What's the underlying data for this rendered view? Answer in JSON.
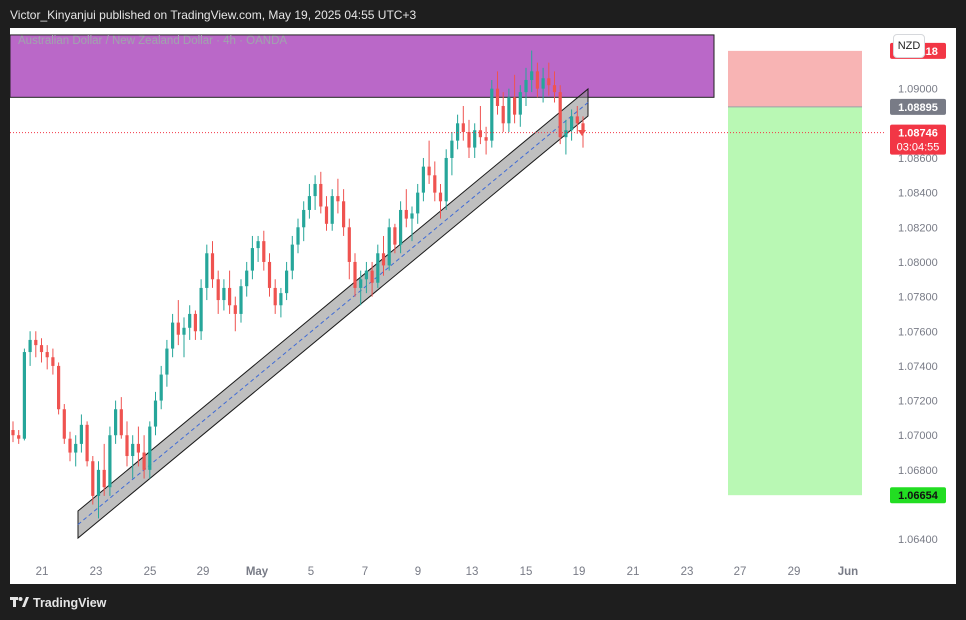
{
  "header": {
    "published_text": "Victor_Kinyanjui published on TradingView.com, May 19, 2025 04:55 UTC+3"
  },
  "chart_header": {
    "symbol": "Australian Dollar / New Zealand Dollar · 4h · OANDA",
    "currency_button": "NZD"
  },
  "price_tags": {
    "target": "1.09218",
    "entry": "1.08895",
    "current": "1.08746",
    "countdown": "03:04:55",
    "stop": "1.06654"
  },
  "footer": {
    "brand": "TradingView"
  },
  "colors": {
    "up": "#26a69a",
    "down": "#ef5350",
    "zone": "#ba68c8",
    "target_zone": "#f8b4b4",
    "stop_zone": "#b9f8b4",
    "channel": "#8a8a8a",
    "current_price": "#f23645",
    "stop_tag": "#22dd22",
    "entry_tag": "#787b86"
  },
  "chart_data": {
    "type": "candlestick",
    "title": "Australian Dollar / New Zealand Dollar · 4h · OANDA",
    "y_ticks": [
      "1.09000",
      "1.08600",
      "1.08400",
      "1.08200",
      "1.08000",
      "1.07800",
      "1.07600",
      "1.07400",
      "1.07200",
      "1.07000",
      "1.06800",
      "1.06400"
    ],
    "x_ticks": [
      "21",
      "23",
      "25",
      "29",
      "May",
      "5",
      "7",
      "9",
      "13",
      "15",
      "19",
      "21",
      "23",
      "27",
      "29",
      "Jun"
    ],
    "ylim": [
      1.0628,
      1.0935
    ],
    "candles": [
      [
        1.0703,
        1.0708,
        1.0696,
        1.07
      ],
      [
        1.07,
        1.0703,
        1.0695,
        1.0698
      ],
      [
        1.0698,
        1.075,
        1.0697,
        1.0748
      ],
      [
        1.0748,
        1.076,
        1.074,
        1.0755
      ],
      [
        1.0755,
        1.076,
        1.0745,
        1.0752
      ],
      [
        1.0752,
        1.0756,
        1.0742,
        1.0748
      ],
      [
        1.0748,
        1.0752,
        1.0738,
        1.0745
      ],
      [
        1.0745,
        1.075,
        1.0735,
        1.074
      ],
      [
        1.074,
        1.0742,
        1.0712,
        1.0715
      ],
      [
        1.0715,
        1.0718,
        1.0695,
        1.0698
      ],
      [
        1.0698,
        1.0702,
        1.0685,
        1.069
      ],
      [
        1.069,
        1.07,
        1.0682,
        1.0695
      ],
      [
        1.0695,
        1.0712,
        1.069,
        1.0706
      ],
      [
        1.0706,
        1.0708,
        1.0682,
        1.0685
      ],
      [
        1.0685,
        1.0688,
        1.066,
        1.0665
      ],
      [
        1.0665,
        1.0685,
        1.0652,
        1.068
      ],
      [
        1.068,
        1.0695,
        1.0665,
        1.067
      ],
      [
        1.067,
        1.0705,
        1.0665,
        1.07
      ],
      [
        1.07,
        1.072,
        1.0695,
        1.0715
      ],
      [
        1.0715,
        1.0722,
        1.0698,
        1.07
      ],
      [
        1.07,
        1.0708,
        1.0682,
        1.0688
      ],
      [
        1.0688,
        1.07,
        1.0675,
        1.0695
      ],
      [
        1.0695,
        1.0705,
        1.0682,
        1.069
      ],
      [
        1.069,
        1.07,
        1.0675,
        1.068
      ],
      [
        1.068,
        1.0708,
        1.0675,
        1.0705
      ],
      [
        1.0705,
        1.0725,
        1.07,
        1.072
      ],
      [
        1.072,
        1.074,
        1.0715,
        1.0735
      ],
      [
        1.0735,
        1.0755,
        1.0728,
        1.075
      ],
      [
        1.075,
        1.077,
        1.0745,
        1.0765
      ],
      [
        1.0765,
        1.0778,
        1.0752,
        1.0758
      ],
      [
        1.0758,
        1.0768,
        1.0745,
        1.0762
      ],
      [
        1.0762,
        1.0775,
        1.0755,
        1.077
      ],
      [
        1.077,
        1.0772,
        1.0755,
        1.076
      ],
      [
        1.076,
        1.079,
        1.0755,
        1.0785
      ],
      [
        1.0785,
        1.081,
        1.0778,
        1.0805
      ],
      [
        1.0805,
        1.0812,
        1.0785,
        1.079
      ],
      [
        1.079,
        1.0795,
        1.077,
        1.0778
      ],
      [
        1.0778,
        1.079,
        1.0772,
        1.0785
      ],
      [
        1.0785,
        1.0795,
        1.077,
        1.0775
      ],
      [
        1.0775,
        1.078,
        1.076,
        1.077
      ],
      [
        1.077,
        1.079,
        1.0765,
        1.0786
      ],
      [
        1.0786,
        1.08,
        1.078,
        1.0795
      ],
      [
        1.0795,
        1.0815,
        1.079,
        1.0808
      ],
      [
        1.0808,
        1.0815,
        1.08,
        1.0812
      ],
      [
        1.0812,
        1.0818,
        1.0795,
        1.08
      ],
      [
        1.08,
        1.0805,
        1.078,
        1.0785
      ],
      [
        1.0785,
        1.079,
        1.077,
        1.0775
      ],
      [
        1.0775,
        1.0785,
        1.0768,
        1.0782
      ],
      [
        1.0782,
        1.08,
        1.0778,
        1.0795
      ],
      [
        1.0795,
        1.0815,
        1.079,
        1.081
      ],
      [
        1.081,
        1.0825,
        1.0805,
        1.082
      ],
      [
        1.082,
        1.0835,
        1.0812,
        1.083
      ],
      [
        1.083,
        1.0845,
        1.0825,
        1.0838
      ],
      [
        1.0838,
        1.085,
        1.083,
        1.0845
      ],
      [
        1.0845,
        1.0852,
        1.0828,
        1.0832
      ],
      [
        1.0832,
        1.0838,
        1.0818,
        1.0822
      ],
      [
        1.0822,
        1.0842,
        1.0818,
        1.0838
      ],
      [
        1.0838,
        1.0848,
        1.0828,
        1.0835
      ],
      [
        1.0835,
        1.0842,
        1.0815,
        1.082
      ],
      [
        1.082,
        1.0825,
        1.079,
        1.08
      ],
      [
        1.08,
        1.0805,
        1.078,
        1.0785
      ],
      [
        1.0785,
        1.0795,
        1.0775,
        1.079
      ],
      [
        1.079,
        1.08,
        1.0782,
        1.0795
      ],
      [
        1.0795,
        1.08,
        1.078,
        1.0788
      ],
      [
        1.0788,
        1.081,
        1.0785,
        1.0805
      ],
      [
        1.0805,
        1.0815,
        1.0792,
        1.0798
      ],
      [
        1.0798,
        1.0825,
        1.0795,
        1.082
      ],
      [
        1.082,
        1.0822,
        1.0805,
        1.081
      ],
      [
        1.081,
        1.0835,
        1.0805,
        1.083
      ],
      [
        1.083,
        1.0842,
        1.082,
        1.0825
      ],
      [
        1.0825,
        1.0832,
        1.0812,
        1.0828
      ],
      [
        1.0828,
        1.0845,
        1.0822,
        1.084
      ],
      [
        1.084,
        1.086,
        1.0835,
        1.0855
      ],
      [
        1.0855,
        1.087,
        1.0845,
        1.085
      ],
      [
        1.085,
        1.0858,
        1.0835,
        1.084
      ],
      [
        1.084,
        1.0845,
        1.0825,
        1.0835
      ],
      [
        1.0835,
        1.0865,
        1.083,
        1.086
      ],
      [
        1.086,
        1.0875,
        1.085,
        1.087
      ],
      [
        1.087,
        1.0885,
        1.0865,
        1.088
      ],
      [
        1.088,
        1.089,
        1.087,
        1.0875
      ],
      [
        1.0875,
        1.0882,
        1.086,
        1.0866
      ],
      [
        1.0866,
        1.088,
        1.086,
        1.0876
      ],
      [
        1.0876,
        1.089,
        1.0868,
        1.0872
      ],
      [
        1.0872,
        1.0878,
        1.0862,
        1.087
      ],
      [
        1.087,
        1.0905,
        1.0866,
        1.09
      ],
      [
        1.09,
        1.091,
        1.0885,
        1.089
      ],
      [
        1.089,
        1.0898,
        1.0875,
        1.088
      ],
      [
        1.088,
        1.09,
        1.0875,
        1.0895
      ],
      [
        1.0895,
        1.0908,
        1.088,
        1.0885
      ],
      [
        1.0885,
        1.0902,
        1.0878,
        1.0898
      ],
      [
        1.0898,
        1.0912,
        1.089,
        1.0905
      ],
      [
        1.0905,
        1.0922,
        1.0898,
        1.091
      ],
      [
        1.091,
        1.0915,
        1.0895,
        1.09
      ],
      [
        1.09,
        1.0912,
        1.0892,
        1.0906
      ],
      [
        1.0906,
        1.0915,
        1.0896,
        1.0902
      ],
      [
        1.0902,
        1.091,
        1.0892,
        1.0898
      ],
      [
        1.0898,
        1.0902,
        1.0868,
        1.0872
      ],
      [
        1.0872,
        1.0882,
        1.0862,
        1.0876
      ],
      [
        1.0876,
        1.0888,
        1.087,
        1.0884
      ],
      [
        1.0884,
        1.089,
        1.0874,
        1.088
      ],
      [
        1.088,
        1.0884,
        1.0866,
        1.0875
      ]
    ],
    "supply_zone": {
      "top": 1.0931,
      "bottom": 1.0895
    },
    "position": {
      "target": 1.09218,
      "entry": 1.08895,
      "stop": 1.06654
    },
    "current_price": 1.08746
  }
}
